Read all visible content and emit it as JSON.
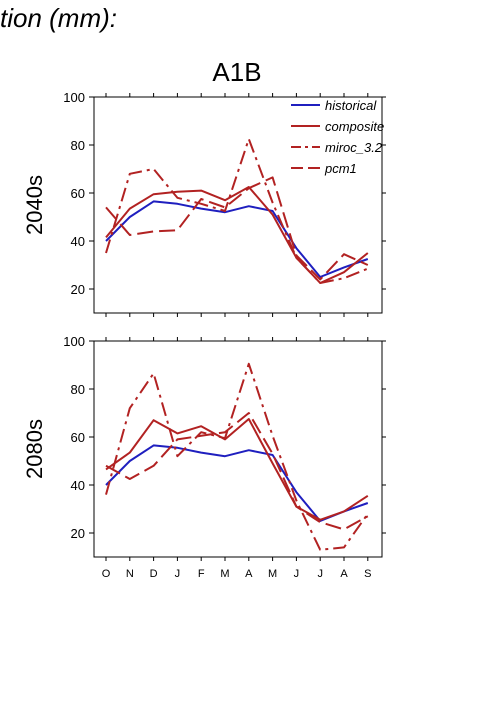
{
  "header_text": "tion (mm):",
  "scenario_title": "A1B",
  "colors": {
    "historical": "#1f1fbf",
    "model": "#b22222"
  },
  "chart_data": [
    {
      "type": "line",
      "panel_label": "2040s",
      "categories": [
        "O",
        "N",
        "D",
        "J",
        "F",
        "M",
        "A",
        "M",
        "J",
        "J",
        "A",
        "S"
      ],
      "ylim": [
        10,
        100
      ],
      "yticks": [
        20,
        40,
        60,
        80,
        100
      ],
      "grid": false,
      "legend_position": "top-right",
      "series": [
        {
          "name": "historical",
          "style": "solid",
          "color": "#1f1fbf",
          "values": [
            40,
            50,
            56.5,
            55.5,
            53.5,
            52,
            54.5,
            52.5,
            37,
            25,
            29,
            32.5
          ]
        },
        {
          "name": "composite",
          "style": "solid",
          "color": "#b22222",
          "values": [
            41.5,
            53.5,
            59.5,
            60.5,
            61,
            57,
            62.5,
            51,
            33,
            22.5,
            27,
            35
          ]
        },
        {
          "name": "miroc_3.2",
          "style": "dashdot",
          "color": "#b22222",
          "values": [
            35,
            68,
            70,
            58,
            55.5,
            52.5,
            82.5,
            56,
            33,
            22.5,
            24.5,
            28.5
          ]
        },
        {
          "name": "pcm1",
          "style": "longdash",
          "color": "#b22222",
          "values": [
            54,
            42.5,
            44,
            44.5,
            57.5,
            54,
            62,
            66.5,
            34,
            24,
            34.5,
            30
          ]
        }
      ]
    },
    {
      "type": "line",
      "panel_label": "2080s",
      "categories": [
        "O",
        "N",
        "D",
        "J",
        "F",
        "M",
        "A",
        "M",
        "J",
        "J",
        "A",
        "S"
      ],
      "ylim": [
        10,
        100
      ],
      "yticks": [
        20,
        40,
        60,
        80,
        100
      ],
      "grid": false,
      "series": [
        {
          "style": "solid",
          "color": "#1f1fbf",
          "values": [
            40,
            50,
            56.5,
            55.5,
            53.5,
            52,
            54.5,
            52.5,
            37,
            25,
            29,
            32.5
          ]
        },
        {
          "style": "solid",
          "color": "#b22222",
          "values": [
            46.5,
            53.5,
            67,
            61.5,
            64.5,
            59,
            67.5,
            49,
            31,
            25.5,
            29,
            35.5
          ]
        },
        {
          "style": "dashdot",
          "color": "#b22222",
          "values": [
            36,
            72,
            86.5,
            52,
            62,
            59.5,
            90.5,
            60.5,
            33.5,
            13,
            14,
            28
          ]
        },
        {
          "style": "longdash",
          "color": "#b22222",
          "values": [
            48,
            42.5,
            48,
            59,
            60.5,
            62,
            70,
            53,
            31,
            24.5,
            21.5,
            27
          ]
        }
      ]
    }
  ]
}
